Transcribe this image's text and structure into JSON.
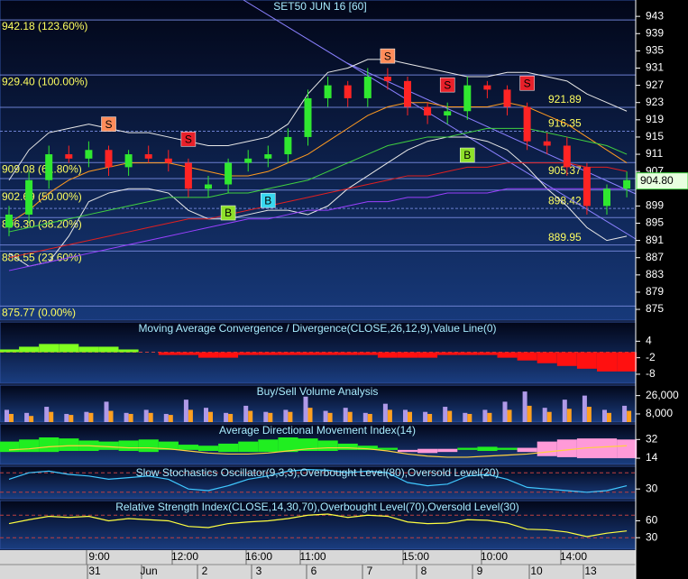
{
  "chart_data": [
    {
      "type": "candlestick",
      "title": "SET50 JUN 16 [60]",
      "ylim": [
        872.5,
        946.8
      ],
      "yticks": [
        943,
        939,
        935,
        931,
        927,
        923,
        919,
        915,
        911,
        907,
        899,
        895,
        891,
        887,
        883,
        879,
        875
      ],
      "open": [
        894,
        897,
        905,
        911,
        910,
        912,
        908,
        911,
        910,
        909,
        903,
        904,
        909,
        910,
        911,
        915,
        924,
        927,
        924,
        929,
        928,
        922,
        920,
        921,
        927,
        926,
        922,
        914,
        913,
        908,
        899,
        903
      ],
      "high": [
        899,
        907,
        913,
        913,
        914,
        913,
        912,
        913,
        912,
        910,
        906,
        910,
        912,
        913,
        917,
        926,
        929,
        928,
        931,
        931,
        929,
        923,
        923,
        929,
        928,
        927,
        923,
        916,
        915,
        909,
        904,
        907
      ],
      "low": [
        892,
        895,
        903,
        909,
        908,
        906,
        906,
        909,
        907,
        901,
        901,
        902,
        907,
        908,
        909,
        913,
        922,
        922,
        922,
        926,
        920,
        918,
        918,
        919,
        924,
        920,
        912,
        911,
        906,
        897,
        897,
        901
      ],
      "close": [
        897,
        905,
        911,
        910,
        912,
        908,
        911,
        910,
        909,
        903,
        904,
        909,
        910,
        911,
        915,
        924,
        927,
        924,
        929,
        928,
        922,
        920,
        921,
        927,
        926,
        922,
        914,
        913,
        908,
        899,
        903,
        905
      ],
      "up_color": "#30e830",
      "down_color": "#ff2424",
      "overlays": [
        {
          "color": "#e8e8e8",
          "values": [
            905,
            912,
            916,
            917,
            918,
            917,
            916,
            916,
            915,
            914,
            913,
            913,
            914,
            915,
            918,
            925,
            930,
            931,
            933,
            933,
            932,
            931,
            930,
            929,
            929,
            930,
            930,
            929,
            928,
            925,
            923,
            921
          ]
        },
        {
          "color": "#e8e8e8",
          "values": [
            888,
            885,
            886,
            892,
            900,
            902,
            903,
            903,
            902,
            898,
            896,
            896,
            897,
            898,
            898,
            897,
            899,
            903,
            906,
            909,
            912,
            914,
            915,
            915,
            914,
            912,
            908,
            903,
            899,
            894,
            891,
            892
          ]
        },
        {
          "color": "#ff9a20",
          "values": [
            895,
            898,
            902,
            905,
            907,
            908,
            909,
            909,
            909,
            908,
            907,
            906,
            906,
            907,
            909,
            911,
            914,
            917,
            920,
            922,
            923,
            923,
            922,
            922,
            922,
            923,
            922,
            920,
            918,
            915,
            912,
            909
          ]
        },
        {
          "color": "#40d040",
          "values": [
            893,
            894,
            895,
            896,
            897,
            898,
            899,
            900,
            901,
            901,
            901,
            902,
            902,
            903,
            904,
            905,
            907,
            909,
            911,
            913,
            914,
            915,
            915,
            916,
            917,
            917,
            917,
            916,
            915,
            914,
            913,
            911
          ]
        },
        {
          "color": "#e02020",
          "values": [
            887,
            888,
            889,
            890,
            891,
            892,
            893,
            894,
            895,
            896,
            896,
            897,
            898,
            899,
            900,
            901,
            902,
            903,
            904,
            905,
            906,
            906,
            907,
            908,
            908,
            909,
            909,
            909,
            909,
            908,
            908,
            907
          ]
        },
        {
          "color": "#9a40ff",
          "values": [
            884,
            885,
            886,
            887,
            888,
            889,
            890,
            891,
            892,
            893,
            894,
            895,
            896,
            896,
            897,
            898,
            898,
            899,
            900,
            900,
            901,
            901,
            902,
            902,
            902,
            903,
            903,
            903,
            903,
            903,
            903,
            903
          ]
        }
      ],
      "fib_levels": [
        {
          "value": 942.18,
          "label": "942.18 (123.60%)"
        },
        {
          "value": 929.4,
          "label": "929.40 (100.00%)"
        },
        {
          "value": 909.08,
          "label": "909.08 (61.80%)"
        },
        {
          "value": 902.69,
          "label": "902.69 (50.00%)"
        },
        {
          "value": 896.3,
          "label": "896.30 (38.20%)"
        },
        {
          "value": 888.55,
          "label": "888.55 (23.60%)"
        },
        {
          "value": 875.77,
          "label": "875.77 (0.00%)"
        }
      ],
      "price_levels": [
        921.89,
        916.35,
        905.37,
        898.42,
        889.95
      ],
      "signals": [
        {
          "label": "S",
          "index": 5,
          "value": 918,
          "color": "#ff8c5a"
        },
        {
          "label": "S",
          "index": 9,
          "value": 914.5,
          "color": "#e8202a"
        },
        {
          "label": "B",
          "index": 11,
          "value": 897.4,
          "color": "#8ee02a"
        },
        {
          "label": "B",
          "index": 13,
          "value": 900.3,
          "color": "#38d8f0"
        },
        {
          "label": "S",
          "index": 19,
          "value": 933.8,
          "color": "#ff8c5a"
        },
        {
          "label": "S",
          "index": 22,
          "value": 927.1,
          "color": "#e8202a"
        },
        {
          "label": "B",
          "index": 23,
          "value": 910.8,
          "color": "#8ee02a"
        },
        {
          "label": "S",
          "index": 26,
          "value": 927.5,
          "color": "#e8202a"
        }
      ],
      "last_price": {
        "value": 904.8,
        "label": "904.80"
      },
      "time_labels": [
        "9:00",
        "12:00",
        "16:00",
        "11:00",
        "15:00",
        "10:00",
        "14:00"
      ],
      "date_labels": [
        "31",
        "Jun",
        "2",
        "3",
        "6",
        "7",
        "8",
        "9",
        "10",
        "13"
      ]
    },
    {
      "type": "bar",
      "title": "Moving Average Convergence / Divergence(CLOSE,26,12,9),Value Line(0)",
      "ylim": [
        -11.3,
        11
      ],
      "yticks": [
        4,
        -2,
        -8
      ],
      "levels": [
        0
      ],
      "values": [
        1,
        2,
        3,
        3,
        2,
        2,
        1,
        0,
        -1,
        -1,
        -2,
        -2,
        -1,
        -1,
        -1,
        -1,
        -1,
        -1,
        -1,
        -2,
        -2,
        -2,
        -1,
        -1,
        -1,
        -2,
        -3,
        -4,
        -5,
        -6,
        -7,
        -7
      ],
      "positive_color": "#80ff20",
      "negative_color": "#ff1010"
    },
    {
      "type": "bar",
      "title": "Buy/Sell Volume Analysis",
      "ylim": [
        0,
        36300
      ],
      "yticks": [
        {
          "value": 26000,
          "label": "26,000"
        },
        {
          "value": 8000,
          "label": "8,000"
        }
      ],
      "series": [
        {
          "color": "#b09ae8",
          "values": [
            12000,
            9000,
            15000,
            8000,
            10000,
            20000,
            9000,
            12000,
            8000,
            22000,
            14000,
            9000,
            16000,
            10000,
            12000,
            25000,
            11000,
            14000,
            9000,
            18000,
            12000,
            10000,
            15000,
            9000,
            12000,
            20000,
            30000,
            14000,
            22000,
            26000,
            12000,
            16000
          ]
        },
        {
          "color": "#ffa020",
          "values": [
            8000,
            6000,
            10000,
            7000,
            9000,
            11000,
            8000,
            9000,
            7000,
            12000,
            10000,
            8000,
            11000,
            9000,
            10000,
            14000,
            9000,
            10000,
            8000,
            12000,
            10000,
            8000,
            11000,
            8000,
            9000,
            12000,
            16000,
            10000,
            13000,
            15000,
            9000,
            11000
          ]
        }
      ]
    },
    {
      "type": "line",
      "title": "Average Directional Movement Index(14)",
      "ylim": [
        8,
        47
      ],
      "yticks": [
        32,
        14
      ],
      "series": [
        {
          "color": "#20ee20",
          "fill": "#20ee20",
          "values": [
            30,
            32,
            34,
            33,
            31,
            30,
            31,
            32,
            30,
            27,
            26,
            28,
            30,
            32,
            34,
            33,
            31,
            28,
            26,
            24,
            20,
            19,
            20,
            24,
            25,
            24,
            20,
            16,
            15,
            14,
            14,
            14
          ]
        },
        {
          "color": "#ff9ad8",
          "fill": "#ff9ad8",
          "values": [
            20,
            20,
            20,
            21,
            21,
            22,
            21,
            20,
            22,
            22,
            21,
            20,
            20,
            20,
            20,
            21,
            21,
            22,
            22,
            22,
            22,
            23,
            23,
            22,
            21,
            22,
            24,
            30,
            32,
            33,
            33,
            32
          ]
        },
        {
          "color": "#ffd040",
          "values": [
            22,
            23,
            25,
            26,
            26,
            25,
            24,
            24,
            23,
            21,
            19,
            18,
            18,
            19,
            21,
            23,
            24,
            24,
            23,
            21,
            18,
            16,
            15,
            15,
            16,
            17,
            18,
            20,
            22,
            24,
            25,
            26
          ]
        }
      ]
    },
    {
      "type": "line",
      "title": "Slow Stochastics Oscillator(9,3,3),Overbought Level(80),Oversold Level(20)",
      "ylim": [
        0,
        100
      ],
      "yticks": [
        30
      ],
      "levels": [
        80,
        20
      ],
      "series": [
        {
          "color": "#40c8ff",
          "values": [
            60,
            80,
            85,
            75,
            70,
            60,
            65,
            70,
            60,
            30,
            25,
            40,
            60,
            70,
            85,
            90,
            88,
            80,
            85,
            80,
            50,
            40,
            45,
            70,
            75,
            60,
            35,
            30,
            25,
            20,
            25,
            40
          ]
        }
      ]
    },
    {
      "type": "line",
      "title": "Relative Strength Index(CLOSE,14,30,70),Overbought Level(70),Oversold Level(30)",
      "ylim": [
        9.5,
        96
      ],
      "yticks": [
        60,
        30
      ],
      "levels": [
        70,
        30
      ],
      "series": [
        {
          "color": "#ffff40",
          "values": [
            55,
            62,
            68,
            66,
            68,
            60,
            64,
            62,
            60,
            50,
            48,
            55,
            58,
            60,
            64,
            70,
            72,
            66,
            70,
            68,
            58,
            55,
            56,
            62,
            61,
            56,
            45,
            44,
            40,
            32,
            38,
            42
          ]
        }
      ]
    }
  ]
}
